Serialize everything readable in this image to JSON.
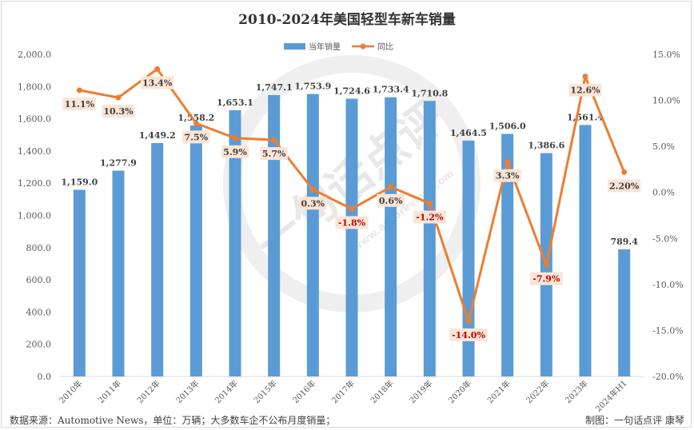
{
  "chart_data": {
    "type": "bar",
    "title": "2010-2024年美国轻型车新车销量",
    "categories": [
      "2010年",
      "2011年",
      "2012年",
      "2013年",
      "2014年",
      "2015年",
      "2016年",
      "2017年",
      "2018年",
      "2019年",
      "2020年",
      "2021年",
      "2022年",
      "2023年",
      "2024年H1"
    ],
    "series": [
      {
        "name": "当年销量",
        "type": "bar",
        "axis": "left",
        "color": "#5b9bd5",
        "values": [
          1159.0,
          1277.9,
          1449.2,
          1558.2,
          1653.1,
          1747.1,
          1753.9,
          1724.6,
          1733.4,
          1710.8,
          1464.5,
          1506.0,
          1386.6,
          1561.4,
          789.4
        ],
        "labels": [
          "1,159.0",
          "1,277.9",
          "1,449.2",
          "1,558.2",
          "1,653.1",
          "1,747.1",
          "1,753.9",
          "1,724.6",
          "1,733.4",
          "1,710.8",
          "1,464.5",
          "1,506.0",
          "1,386.6",
          "1,561.4",
          "789.4"
        ]
      },
      {
        "name": "同比",
        "type": "line",
        "axis": "right",
        "color": "#ed7d31",
        "values": [
          11.1,
          10.3,
          13.4,
          7.5,
          5.9,
          5.7,
          0.3,
          -1.8,
          0.6,
          -1.2,
          -14.0,
          3.3,
          -7.9,
          12.6,
          2.2
        ],
        "labels": [
          "11.1%",
          "10.3%",
          "13.4%",
          "7.5%",
          "5.9%",
          "5.7%",
          "0.3%",
          "-1.8%",
          "0.6%",
          "-1.2%",
          "-14.0%",
          "3.3%",
          "-7.9%",
          "12.6%",
          "2.20%"
        ]
      }
    ],
    "y_left": {
      "range": [
        0,
        2000
      ],
      "ticks": [
        "0.0",
        "200.0",
        "400.0",
        "600.0",
        "800.0",
        "1,000.0",
        "1,200.0",
        "1,400.0",
        "1,600.0",
        "1,800.0",
        "2,000.0"
      ]
    },
    "y_right": {
      "range": [
        -20,
        15
      ],
      "ticks": [
        "-20.0%",
        "-15.0%",
        "-10.0%",
        "-5.0%",
        "0.0%",
        "5.0%",
        "10.0%",
        "15.0%"
      ]
    },
    "grid": false,
    "legend": "top-center",
    "colors": {
      "negative_label": "#c00000",
      "positive_label": "#404040",
      "label_bg": "#fbe5d6"
    }
  },
  "footer": {
    "source": "数据来源：Automotive News，单位：万辆；大多数车企不公布月度销量；",
    "credit": "制图：一句话点评  康琴"
  },
  "watermark": {
    "icon": "speech-bubble-logo-icon",
    "text": "一句话点评",
    "url": "www.autoreview.com"
  }
}
